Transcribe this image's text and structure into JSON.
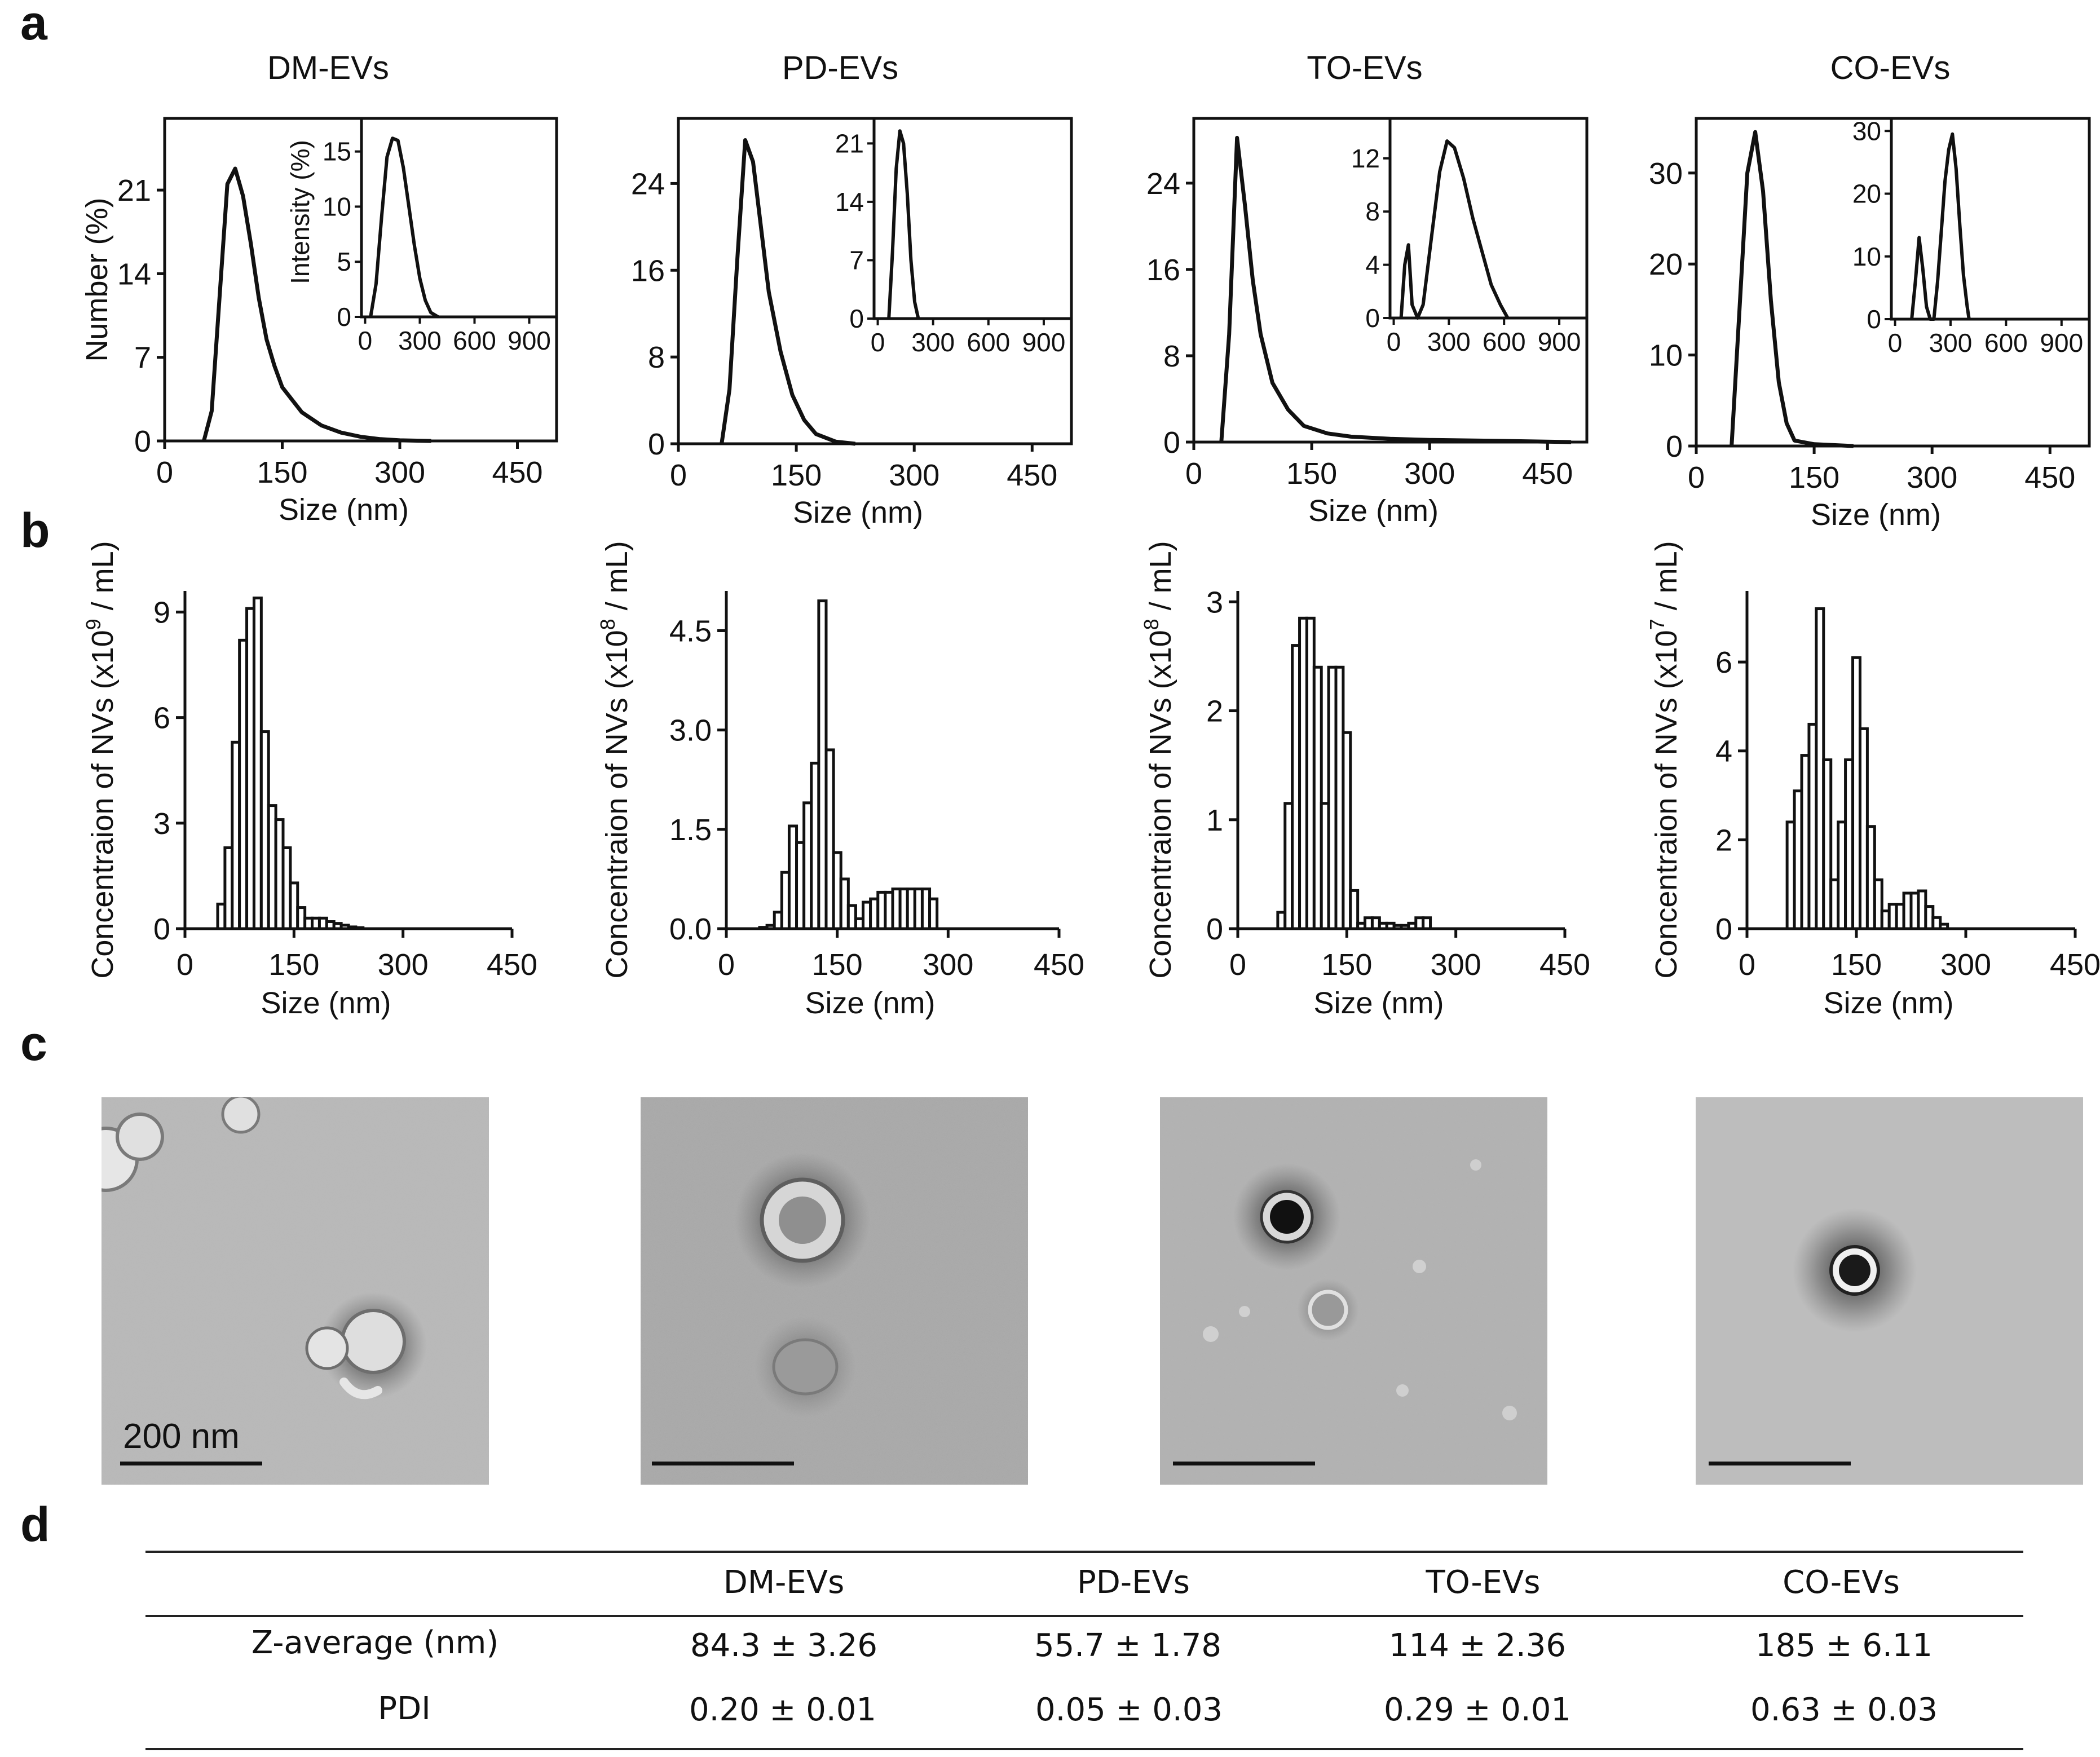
{
  "panel_letters": [
    "a",
    "b",
    "c",
    "d"
  ],
  "samples": [
    "DM-EVs",
    "PD-EVs",
    "TO-EVs",
    "CO-EVs"
  ],
  "chart_data": [
    {
      "panel": "a",
      "type": "line",
      "title": "DM-EVs",
      "xlabel": "Size (nm)",
      "ylabel": "Number (%)",
      "xlim": [
        0,
        500
      ],
      "ylim": [
        0,
        27
      ],
      "xticks": [
        0,
        150,
        300,
        450
      ],
      "yticks": [
        0,
        7,
        14,
        21
      ],
      "x": [
        50,
        60,
        70,
        80,
        90,
        100,
        110,
        120,
        130,
        140,
        150,
        175,
        200,
        225,
        250,
        275,
        300,
        340
      ],
      "y": [
        0,
        2.5,
        12,
        21.5,
        22.8,
        20.5,
        16.5,
        12,
        8.5,
        6.3,
        4.5,
        2.4,
        1.3,
        0.7,
        0.35,
        0.15,
        0.05,
        0
      ],
      "inset": {
        "ylabel": "Intensity (%)",
        "xlim": [
          -20,
          1050
        ],
        "ylim": [
          0,
          18
        ],
        "xticks": [
          0,
          300,
          600,
          900
        ],
        "yticks": [
          0,
          5,
          10,
          15
        ],
        "x": [
          30,
          60,
          90,
          120,
          150,
          180,
          210,
          240,
          270,
          300,
          330,
          360,
          400
        ],
        "y": [
          0,
          3,
          9,
          14.5,
          16.2,
          16,
          13.5,
          10,
          6.5,
          3.5,
          1.5,
          0.4,
          0
        ]
      }
    },
    {
      "panel": "a",
      "type": "line",
      "title": "PD-EVs",
      "xlabel": "Size (nm)",
      "ylabel": "Number (%)",
      "xlim": [
        0,
        500
      ],
      "ylim": [
        0,
        30
      ],
      "xticks": [
        0,
        150,
        300,
        450
      ],
      "yticks": [
        0,
        8,
        16,
        24
      ],
      "x": [
        55,
        65,
        75,
        85,
        95,
        105,
        115,
        130,
        145,
        160,
        175,
        200,
        225
      ],
      "y": [
        0,
        5,
        17,
        28,
        26,
        20,
        14,
        8.5,
        4.5,
        2.2,
        0.9,
        0.2,
        0
      ],
      "inset": {
        "ylabel": "",
        "xlim": [
          -20,
          1050
        ],
        "ylim": [
          0,
          24
        ],
        "xticks": [
          0,
          300,
          600,
          900
        ],
        "yticks": [
          0,
          7,
          14,
          21
        ],
        "x": [
          60,
          80,
          100,
          120,
          140,
          160,
          180,
          200,
          220
        ],
        "y": [
          0,
          8,
          18,
          22.5,
          21,
          15,
          7,
          2,
          0
        ]
      }
    },
    {
      "panel": "a",
      "type": "line",
      "title": "TO-EVs",
      "xlabel": "Size (nm)",
      "ylabel": "Number (%)",
      "xlim": [
        0,
        500
      ],
      "ylim": [
        0,
        30
      ],
      "xticks": [
        0,
        150,
        300,
        450
      ],
      "yticks": [
        0,
        8,
        16,
        24
      ],
      "x": [
        35,
        45,
        55,
        65,
        75,
        85,
        100,
        120,
        140,
        170,
        200,
        250,
        300,
        400,
        480
      ],
      "y": [
        0,
        10,
        28.2,
        22,
        15,
        10,
        5.5,
        3,
        1.5,
        0.8,
        0.5,
        0.3,
        0.2,
        0.1,
        0
      ],
      "inset": {
        "ylabel": "",
        "xlim": [
          -20,
          1050
        ],
        "ylim": [
          0,
          15
        ],
        "xticks": [
          0,
          300,
          600,
          900
        ],
        "yticks": [
          0,
          4,
          8,
          12
        ],
        "x": [
          40,
          60,
          80,
          100,
          130,
          160,
          200,
          250,
          290,
          330,
          380,
          430,
          480,
          530,
          580,
          620
        ],
        "y": [
          0,
          4,
          5.5,
          1,
          0,
          1,
          5.5,
          11,
          13.3,
          12.8,
          10.5,
          7.5,
          5,
          2.5,
          1,
          0
        ]
      }
    },
    {
      "panel": "a",
      "type": "line",
      "title": "CO-EVs",
      "xlabel": "Size (nm)",
      "ylabel": "Number (%)",
      "xlim": [
        0,
        500
      ],
      "ylim": [
        0,
        36
      ],
      "xticks": [
        0,
        150,
        300,
        450
      ],
      "yticks": [
        0,
        10,
        20,
        30
      ],
      "x": [
        45,
        55,
        65,
        75,
        85,
        95,
        105,
        115,
        125,
        150,
        200
      ],
      "y": [
        0,
        15,
        30,
        34.5,
        28,
        16,
        7,
        2.5,
        0.6,
        0.2,
        0
      ],
      "inset": {
        "ylabel": "",
        "xlim": [
          -20,
          1050
        ],
        "ylim": [
          0,
          32
        ],
        "xticks": [
          0,
          300,
          600,
          900
        ],
        "yticks": [
          0,
          10,
          20,
          30
        ],
        "x": [
          90,
          110,
          130,
          150,
          170,
          190,
          210,
          230,
          250,
          270,
          290,
          310,
          330,
          350,
          370,
          390,
          400
        ],
        "y": [
          0,
          6,
          13,
          8,
          2,
          0,
          0,
          6,
          14,
          22,
          27,
          29.5,
          24,
          15,
          7,
          2,
          0
        ]
      }
    },
    {
      "panel": "b",
      "type": "bar",
      "title": "DM-EVs",
      "xlabel": "Size (nm)",
      "ylabel_main": "Concentraion of NVs (x10",
      "ylabel_exp": "9",
      "ylabel_tail": "/ mL)",
      "xlim": [
        0,
        450
      ],
      "ylim": [
        0,
        9.6
      ],
      "bin_width": 10,
      "xticks": [
        0,
        150,
        300,
        450
      ],
      "yticks": [
        0,
        3,
        6,
        9
      ],
      "bin_starts": [
        45,
        55,
        65,
        75,
        85,
        95,
        105,
        115,
        125,
        135,
        145,
        155,
        165,
        175,
        185,
        195,
        205,
        215,
        225,
        235
      ],
      "values": [
        0.7,
        2.3,
        5.3,
        8.2,
        9.1,
        9.4,
        5.6,
        3.5,
        3.1,
        2.3,
        1.3,
        0.6,
        0.3,
        0.3,
        0.3,
        0.2,
        0.15,
        0.1,
        0.05,
        0.03
      ]
    },
    {
      "panel": "b",
      "type": "bar",
      "title": "PD-EVs",
      "xlabel": "Size (nm)",
      "ylabel_main": "Concentraion of NVs (x10",
      "ylabel_exp": "8",
      "ylabel_tail": "/ mL)",
      "xlim": [
        0,
        450
      ],
      "ylim": [
        0,
        5.1
      ],
      "bin_width": 10,
      "xticks": [
        0,
        150,
        300,
        450
      ],
      "yticks": [
        0,
        1.5,
        3.0,
        4.5
      ],
      "bin_starts": [
        45,
        55,
        65,
        75,
        85,
        95,
        105,
        115,
        125,
        135,
        145,
        155,
        165,
        175,
        185,
        195,
        205,
        215,
        225,
        235,
        245,
        255,
        265,
        275
      ],
      "values": [
        0.02,
        0.05,
        0.25,
        0.85,
        1.55,
        1.3,
        1.9,
        2.5,
        4.95,
        2.7,
        1.15,
        0.75,
        0.35,
        0.15,
        0.4,
        0.45,
        0.55,
        0.55,
        0.6,
        0.6,
        0.6,
        0.6,
        0.6,
        0.45
      ]
    },
    {
      "panel": "b",
      "type": "bar",
      "title": "TO-EVs",
      "xlabel": "Size (nm)",
      "ylabel_main": "Concentraion of NVs (x10",
      "ylabel_exp": "8",
      "ylabel_tail": "/ mL)",
      "xlim": [
        0,
        450
      ],
      "ylim": [
        0,
        3.1
      ],
      "bin_width": 10,
      "xticks": [
        0,
        150,
        300,
        450
      ],
      "yticks": [
        0,
        1,
        2,
        3
      ],
      "bin_starts": [
        55,
        65,
        75,
        85,
        95,
        105,
        115,
        125,
        135,
        145,
        155,
        165,
        175,
        185,
        195,
        205,
        215,
        225,
        235,
        245,
        255
      ],
      "values": [
        0.15,
        1.15,
        2.6,
        2.85,
        2.85,
        2.4,
        1.15,
        2.4,
        2.4,
        1.8,
        0.35,
        0.05,
        0.1,
        0.1,
        0.05,
        0.05,
        0.03,
        0.03,
        0.05,
        0.1,
        0.1
      ]
    },
    {
      "panel": "b",
      "type": "bar",
      "title": "CO-EVs",
      "xlabel": "Size (nm)",
      "ylabel_main": "Concentraion of NVs (x10",
      "ylabel_exp": "7",
      "ylabel_tail": "/ mL)",
      "xlim": [
        0,
        450
      ],
      "ylim": [
        0,
        7.6
      ],
      "bin_width": 10,
      "xticks": [
        0,
        150,
        300,
        450
      ],
      "yticks": [
        0,
        2,
        4,
        6
      ],
      "bin_starts": [
        55,
        65,
        75,
        85,
        95,
        105,
        115,
        125,
        135,
        145,
        155,
        165,
        175,
        185,
        195,
        205,
        215,
        225,
        235,
        245,
        255,
        265
      ],
      "values": [
        2.4,
        3.1,
        3.9,
        4.6,
        7.2,
        3.8,
        1.1,
        2.4,
        3.8,
        6.1,
        4.5,
        2.3,
        1.1,
        0.4,
        0.55,
        0.55,
        0.8,
        0.8,
        0.85,
        0.5,
        0.25,
        0.1
      ]
    }
  ],
  "tem": {
    "scale_text": "200 nm",
    "images": [
      "DM-EVs",
      "PD-EVs",
      "TO-EVs",
      "CO-EVs"
    ]
  },
  "table": {
    "headers": [
      "",
      "DM-EVs",
      "PD-EVs",
      "TO-EVs",
      "CO-EVs"
    ],
    "rows": [
      [
        "Z-average (nm)",
        "84.3 ± 3.26",
        "55.7 ± 1.78",
        "114 ± 2.36",
        "185 ± 6.11"
      ],
      [
        "PDI",
        "0.20 ± 0.01",
        "0.05 ± 0.03",
        "0.29 ± 0.01",
        "0.63 ± 0.03"
      ]
    ]
  }
}
